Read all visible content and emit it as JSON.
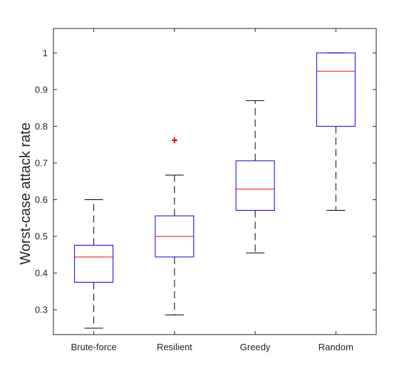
{
  "chart_data": {
    "type": "boxplot",
    "title": "",
    "xlabel": "",
    "ylabel": "Worst-case attack rate",
    "ylim": [
      0.2325,
      1.0665
    ],
    "yticks": [
      0.3,
      0.4,
      0.5,
      0.6,
      0.7,
      0.8,
      0.9,
      1
    ],
    "ytick_labels": [
      "0.3",
      "0.4",
      "0.5",
      "0.6",
      "0.7",
      "0.8",
      "0.9",
      "1"
    ],
    "grid": false,
    "categories": [
      "Brute-force",
      "Resilient",
      "Greedy",
      "Random"
    ],
    "boxes": [
      {
        "category": "Brute-force",
        "whisker_low": 0.25,
        "q1": 0.375,
        "median": 0.444,
        "q3": 0.476,
        "whisker_high": 0.6,
        "outliers": []
      },
      {
        "category": "Resilient",
        "whisker_low": 0.286,
        "q1": 0.444,
        "median": 0.5,
        "q3": 0.556,
        "whisker_high": 0.667,
        "outliers": [
          0.762
        ]
      },
      {
        "category": "Greedy",
        "whisker_low": 0.455,
        "q1": 0.571,
        "median": 0.629,
        "q3": 0.706,
        "whisker_high": 0.87,
        "outliers": []
      },
      {
        "category": "Random",
        "whisker_low": 0.571,
        "q1": 0.8,
        "median": 0.95,
        "q3": 1.0,
        "whisker_high": 1.0,
        "outliers": []
      }
    ],
    "colors": {
      "box": "#0000ff",
      "median": "#ff0000",
      "whisker": "#000000",
      "outlier": "#ff0000",
      "axes": "#262626"
    }
  }
}
